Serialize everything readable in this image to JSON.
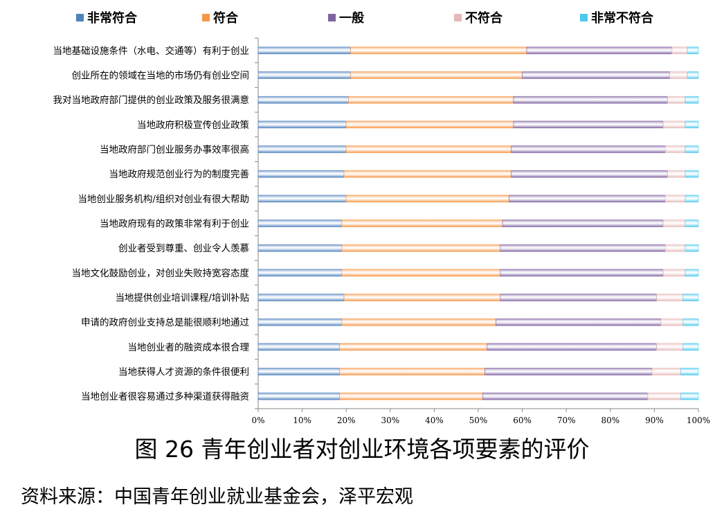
{
  "chart_data": {
    "type": "bar",
    "orientation": "horizontal",
    "stacked": "percent",
    "categories": [
      "当地基础设施条件（水电、交通等）有利于创业",
      "创业所在的领域在当地的市场仍有创业空间",
      "我对当地政府部门提供的创业政策及服务很满意",
      "当地政府积极宣传创业政策",
      "当地政府部门创业服务办事效率很高",
      "当地政府规范创业行为的制度完善",
      "当地创业服务机构/组织对创业有很大帮助",
      "当地政府现有的政策非常有利于创业",
      "创业者受到尊重、创业令人羡慕",
      "当地文化鼓励创业，对创业失败持宽容态度",
      "当地提供创业培训课程/培训补贴",
      "申请的政府创业支持总是能很顺利地通过",
      "当地创业者的融资成本很合理",
      "当地获得人才资源的条件很便利",
      "当地创业者很容易通过多种渠道获得融资"
    ],
    "series": [
      {
        "name": "非常符合",
        "color": "#4f81bd",
        "values": [
          21,
          21,
          20.5,
          20,
          20,
          19.5,
          20,
          19,
          19,
          19,
          19.5,
          19,
          18.5,
          18.5,
          18.5
        ]
      },
      {
        "name": "符合",
        "color": "#f79646",
        "values": [
          40,
          39,
          37.5,
          38,
          37.5,
          38,
          37,
          36.5,
          36,
          36,
          35.5,
          35,
          33.5,
          33,
          32.5
        ]
      },
      {
        "name": "一般",
        "color": "#8064a2",
        "values": [
          33,
          33.5,
          35,
          34,
          35,
          35.5,
          35.5,
          36.5,
          37.5,
          37,
          35.5,
          37.5,
          38.5,
          38,
          37.5
        ]
      },
      {
        "name": "不符合",
        "color": "#e6b9b8",
        "values": [
          3.5,
          4,
          4,
          5,
          4.5,
          4,
          4.5,
          5,
          4.5,
          5,
          6,
          5,
          6,
          6.5,
          7.5
        ]
      },
      {
        "name": "非常不符合",
        "color": "#4bc9ee",
        "values": [
          2.5,
          2.5,
          3,
          3,
          3,
          3,
          3,
          3,
          3,
          3,
          3.5,
          3.5,
          3.5,
          4,
          4
        ]
      }
    ],
    "x_ticks": [
      "0%",
      "10%",
      "20%",
      "30%",
      "40%",
      "50%",
      "60%",
      "70%",
      "80%",
      "90%",
      "100%"
    ],
    "xlim": [
      0,
      100
    ],
    "grid": false,
    "legend": "top"
  },
  "caption": "图 26  青年创业者对创业环境各项要素的评价",
  "source": "资料来源：中国青年创业就业基金会，泽平宏观"
}
